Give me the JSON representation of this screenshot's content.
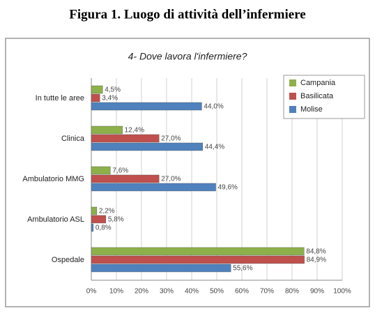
{
  "chart_data": {
    "type": "hbar",
    "caption": "Figura 1. Luogo di attività dell’infermiere",
    "title": "4- Dove lavora l'infermiere?",
    "categories": [
      "In tutte le aree",
      "Clinica",
      "Ambulatorio MMG",
      "Ambulatorio ASL",
      "Ospedale"
    ],
    "series": [
      {
        "name": "Campania",
        "color": "#8db04a",
        "values": [
          4.5,
          12.4,
          7.6,
          2.2,
          84.8
        ],
        "value_labels": [
          "4,5%",
          "12,4%",
          "7,6%",
          "2,2%",
          "84,8%"
        ]
      },
      {
        "name": "Basilicata",
        "color": "#c0504d",
        "values": [
          3.4,
          27.0,
          27.0,
          5.8,
          84.9
        ],
        "value_labels": [
          "3,4%",
          "27,0%",
          "27,0%",
          "5,8%",
          "84,9%"
        ]
      },
      {
        "name": "Molise",
        "color": "#4f81bd",
        "values": [
          44.0,
          44.4,
          49.6,
          0.8,
          55.6
        ],
        "value_labels": [
          "44,0%",
          "44,4%",
          "49,6%",
          "0,8%",
          "55,6%"
        ]
      }
    ],
    "xlim": [
      0,
      100
    ],
    "xticks": [
      {
        "value": 0,
        "label": "0%"
      },
      {
        "value": 10,
        "label": "10%"
      },
      {
        "value": 20,
        "label": "20%"
      },
      {
        "value": 30,
        "label": "30%"
      },
      {
        "value": 40,
        "label": "40%"
      },
      {
        "value": 50,
        "label": "50%"
      },
      {
        "value": 60,
        "label": "60%"
      },
      {
        "value": 70,
        "label": "70%"
      },
      {
        "value": 80,
        "label": "80%"
      },
      {
        "value": 90,
        "label": "90%"
      },
      {
        "value": 100,
        "label": "100%"
      }
    ],
    "grid": true,
    "legend": "top-right"
  }
}
